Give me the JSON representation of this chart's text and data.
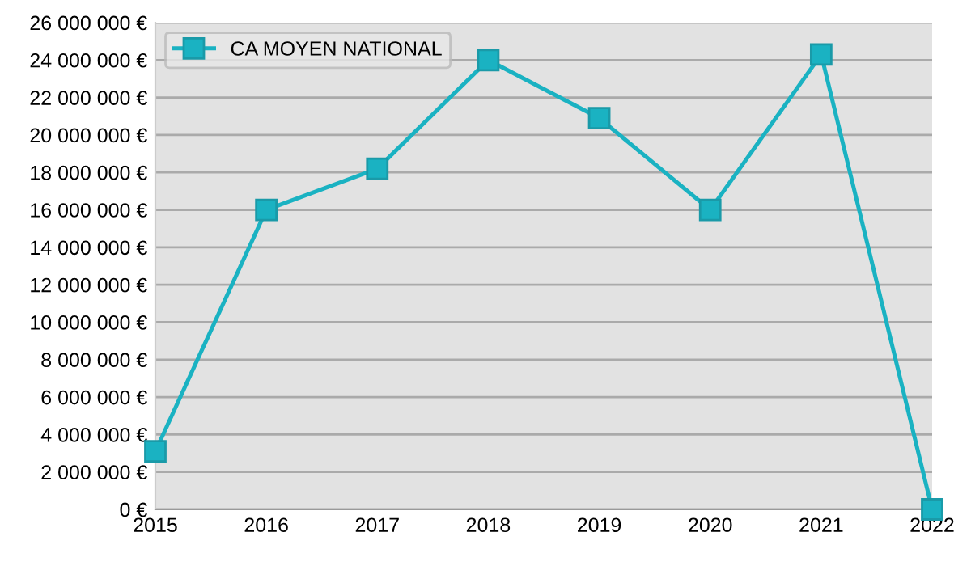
{
  "chart_data": {
    "type": "line",
    "categories": [
      "2015",
      "2016",
      "2017",
      "2018",
      "2019",
      "2020",
      "2021",
      "2022"
    ],
    "series": [
      {
        "name": "CA MOYEN NATIONAL",
        "color": "#1ab2c2",
        "values": [
          3100000,
          16000000,
          18200000,
          24000000,
          20900000,
          16000000,
          24300000,
          0
        ]
      }
    ],
    "ylim": [
      0,
      26000000
    ],
    "yticks": [
      {
        "value": 0,
        "label": "0 €"
      },
      {
        "value": 2000000,
        "label": "2 000 000 €"
      },
      {
        "value": 4000000,
        "label": "4 000 000 €"
      },
      {
        "value": 6000000,
        "label": "6 000 000 €"
      },
      {
        "value": 8000000,
        "label": "8 000 000 €"
      },
      {
        "value": 10000000,
        "label": "10 000 000 €"
      },
      {
        "value": 12000000,
        "label": "12 000 000 €"
      },
      {
        "value": 14000000,
        "label": "14 000 000 €"
      },
      {
        "value": 16000000,
        "label": "16 000 000 €"
      },
      {
        "value": 18000000,
        "label": "18 000 000 €"
      },
      {
        "value": 20000000,
        "label": "20 000 000 €"
      },
      {
        "value": 22000000,
        "label": "22 000 000 €"
      },
      {
        "value": 24000000,
        "label": "24 000 000 €"
      },
      {
        "value": 26000000,
        "label": "26 000 000 €"
      }
    ],
    "grid": "y",
    "legend": "top left",
    "marker": "square",
    "line_style": "solid"
  }
}
